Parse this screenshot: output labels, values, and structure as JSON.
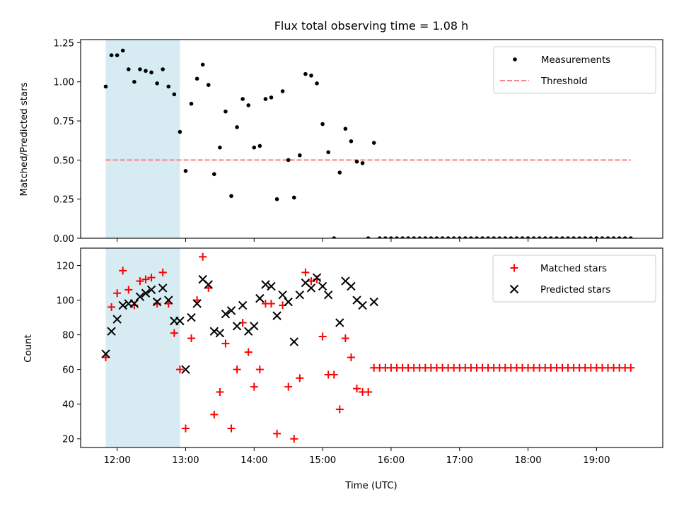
{
  "chart_data": [
    {
      "type": "scatter",
      "title": "Flux total observing time = 1.08 h",
      "xlabel": "",
      "ylabel": "Matched/Predicted stars",
      "ylim": [
        0,
        1.27
      ],
      "yticks": [
        0.0,
        0.25,
        0.5,
        0.75,
        1.0,
        1.25
      ],
      "ytick_labels": [
        "0.00",
        "0.25",
        "0.50",
        "0.75",
        "1.00",
        "1.25"
      ],
      "xlim": [
        "11:28",
        "19:58"
      ],
      "xticks": [
        "12:00",
        "13:00",
        "14:00",
        "15:00",
        "16:00",
        "17:00",
        "18:00",
        "19:00"
      ],
      "shaded_interval": [
        "11:50",
        "12:55"
      ],
      "shaded_color": "#add8e6",
      "legend_position": "upper right",
      "legend": [
        "Measurements",
        "Threshold"
      ],
      "threshold": {
        "name": "Threshold",
        "y": 0.5,
        "x_range": [
          "11:50",
          "19:30"
        ],
        "color": "#ff7f7f",
        "style": "dashed"
      },
      "series": [
        {
          "name": "Measurements",
          "marker": "dot",
          "color": "#000000",
          "points": [
            [
              "11:50",
              0.97
            ],
            [
              "11:55",
              1.17
            ],
            [
              "12:00",
              1.17
            ],
            [
              "12:05",
              1.2
            ],
            [
              "12:10",
              1.08
            ],
            [
              "12:15",
              1.0
            ],
            [
              "12:20",
              1.08
            ],
            [
              "12:25",
              1.07
            ],
            [
              "12:30",
              1.06
            ],
            [
              "12:35",
              0.99
            ],
            [
              "12:40",
              1.08
            ],
            [
              "12:45",
              0.97
            ],
            [
              "12:50",
              0.92
            ],
            [
              "12:55",
              0.68
            ],
            [
              "13:00",
              0.43
            ],
            [
              "13:05",
              0.86
            ],
            [
              "13:10",
              1.02
            ],
            [
              "13:15",
              1.11
            ],
            [
              "13:20",
              0.98
            ],
            [
              "13:25",
              0.41
            ],
            [
              "13:30",
              0.58
            ],
            [
              "13:35",
              0.81
            ],
            [
              "13:40",
              0.27
            ],
            [
              "13:45",
              0.71
            ],
            [
              "13:50",
              0.89
            ],
            [
              "13:55",
              0.85
            ],
            [
              "14:00",
              0.58
            ],
            [
              "14:05",
              0.59
            ],
            [
              "14:10",
              0.89
            ],
            [
              "14:15",
              0.9
            ],
            [
              "14:20",
              0.25
            ],
            [
              "14:25",
              0.94
            ],
            [
              "14:30",
              0.5
            ],
            [
              "14:35",
              0.26
            ],
            [
              "14:40",
              0.53
            ],
            [
              "14:45",
              1.05
            ],
            [
              "14:50",
              1.04
            ],
            [
              "14:55",
              0.99
            ],
            [
              "15:00",
              0.73
            ],
            [
              "15:05",
              0.55
            ],
            [
              "15:10",
              0.0
            ],
            [
              "15:15",
              0.42
            ],
            [
              "15:20",
              0.7
            ],
            [
              "15:25",
              0.62
            ],
            [
              "15:30",
              0.49
            ],
            [
              "15:35",
              0.48
            ],
            [
              "15:40",
              0.0
            ],
            [
              "15:45",
              0.61
            ],
            [
              "15:50",
              0.0
            ],
            [
              "15:55",
              0.0
            ],
            [
              "16:00",
              0.0
            ],
            [
              "16:05",
              0.0
            ],
            [
              "16:10",
              0.0
            ],
            [
              "16:15",
              0.0
            ],
            [
              "16:20",
              0.0
            ],
            [
              "16:25",
              0.0
            ],
            [
              "16:30",
              0.0
            ],
            [
              "16:35",
              0.0
            ],
            [
              "16:40",
              0.0
            ],
            [
              "16:45",
              0.0
            ],
            [
              "16:50",
              0.0
            ],
            [
              "16:55",
              0.0
            ],
            [
              "17:00",
              0.0
            ],
            [
              "17:05",
              0.0
            ],
            [
              "17:10",
              0.0
            ],
            [
              "17:15",
              0.0
            ],
            [
              "17:20",
              0.0
            ],
            [
              "17:25",
              0.0
            ],
            [
              "17:30",
              0.0
            ],
            [
              "17:35",
              0.0
            ],
            [
              "17:40",
              0.0
            ],
            [
              "17:45",
              0.0
            ],
            [
              "17:50",
              0.0
            ],
            [
              "17:55",
              0.0
            ],
            [
              "18:00",
              0.0
            ],
            [
              "18:05",
              0.0
            ],
            [
              "18:10",
              0.0
            ],
            [
              "18:15",
              0.0
            ],
            [
              "18:20",
              0.0
            ],
            [
              "18:25",
              0.0
            ],
            [
              "18:30",
              0.0
            ],
            [
              "18:35",
              0.0
            ],
            [
              "18:40",
              0.0
            ],
            [
              "18:45",
              0.0
            ],
            [
              "18:50",
              0.0
            ],
            [
              "18:55",
              0.0
            ],
            [
              "19:00",
              0.0
            ],
            [
              "19:05",
              0.0
            ],
            [
              "19:10",
              0.0
            ],
            [
              "19:15",
              0.0
            ],
            [
              "19:20",
              0.0
            ],
            [
              "19:25",
              0.0
            ],
            [
              "19:30",
              0.0
            ]
          ]
        }
      ]
    },
    {
      "type": "scatter",
      "title": "",
      "xlabel": "Time (UTC)",
      "ylabel": "Count",
      "ylim": [
        15,
        130
      ],
      "yticks": [
        20,
        40,
        60,
        80,
        100,
        120
      ],
      "xlim": [
        "11:28",
        "19:58"
      ],
      "xticks": [
        "12:00",
        "13:00",
        "14:00",
        "15:00",
        "16:00",
        "17:00",
        "18:00",
        "19:00"
      ],
      "shaded_interval": [
        "11:50",
        "12:55"
      ],
      "shaded_color": "#add8e6",
      "legend_position": "upper right",
      "legend": [
        "Matched stars",
        "Predicted stars"
      ],
      "series": [
        {
          "name": "Matched stars",
          "marker": "plus",
          "color": "#ff0000",
          "points": [
            [
              "11:50",
              67
            ],
            [
              "11:55",
              96
            ],
            [
              "12:00",
              104
            ],
            [
              "12:05",
              117
            ],
            [
              "12:10",
              106
            ],
            [
              "12:15",
              97
            ],
            [
              "12:20",
              111
            ],
            [
              "12:25",
              112
            ],
            [
              "12:30",
              113
            ],
            [
              "12:35",
              98
            ],
            [
              "12:40",
              116
            ],
            [
              "12:45",
              98
            ],
            [
              "12:50",
              81
            ],
            [
              "12:55",
              60
            ],
            [
              "13:00",
              26
            ],
            [
              "13:05",
              78
            ],
            [
              "13:10",
              100
            ],
            [
              "13:15",
              125
            ],
            [
              "13:20",
              107
            ],
            [
              "13:25",
              34
            ],
            [
              "13:30",
              47
            ],
            [
              "13:35",
              75
            ],
            [
              "13:40",
              26
            ],
            [
              "13:45",
              60
            ],
            [
              "13:50",
              87
            ],
            [
              "13:55",
              70
            ],
            [
              "14:00",
              50
            ],
            [
              "14:05",
              60
            ],
            [
              "14:10",
              98
            ],
            [
              "14:15",
              98
            ],
            [
              "14:20",
              23
            ],
            [
              "14:25",
              97
            ],
            [
              "14:30",
              50
            ],
            [
              "14:35",
              20
            ],
            [
              "14:40",
              55
            ],
            [
              "14:45",
              116
            ],
            [
              "14:50",
              111
            ],
            [
              "14:55",
              112
            ],
            [
              "15:00",
              79
            ],
            [
              "15:05",
              57
            ],
            [
              "15:10",
              57
            ],
            [
              "15:15",
              37
            ],
            [
              "15:20",
              78
            ],
            [
              "15:25",
              67
            ],
            [
              "15:30",
              49
            ],
            [
              "15:35",
              47
            ],
            [
              "15:40",
              47
            ],
            [
              "15:45",
              61
            ],
            [
              "15:50",
              61
            ],
            [
              "15:55",
              61
            ],
            [
              "16:00",
              61
            ],
            [
              "16:05",
              61
            ],
            [
              "16:10",
              61
            ],
            [
              "16:15",
              61
            ],
            [
              "16:20",
              61
            ],
            [
              "16:25",
              61
            ],
            [
              "16:30",
              61
            ],
            [
              "16:35",
              61
            ],
            [
              "16:40",
              61
            ],
            [
              "16:45",
              61
            ],
            [
              "16:50",
              61
            ],
            [
              "16:55",
              61
            ],
            [
              "17:00",
              61
            ],
            [
              "17:05",
              61
            ],
            [
              "17:10",
              61
            ],
            [
              "17:15",
              61
            ],
            [
              "17:20",
              61
            ],
            [
              "17:25",
              61
            ],
            [
              "17:30",
              61
            ],
            [
              "17:35",
              61
            ],
            [
              "17:40",
              61
            ],
            [
              "17:45",
              61
            ],
            [
              "17:50",
              61
            ],
            [
              "17:55",
              61
            ],
            [
              "18:00",
              61
            ],
            [
              "18:05",
              61
            ],
            [
              "18:10",
              61
            ],
            [
              "18:15",
              61
            ],
            [
              "18:20",
              61
            ],
            [
              "18:25",
              61
            ],
            [
              "18:30",
              61
            ],
            [
              "18:35",
              61
            ],
            [
              "18:40",
              61
            ],
            [
              "18:45",
              61
            ],
            [
              "18:50",
              61
            ],
            [
              "18:55",
              61
            ],
            [
              "19:00",
              61
            ],
            [
              "19:05",
              61
            ],
            [
              "19:10",
              61
            ],
            [
              "19:15",
              61
            ],
            [
              "19:20",
              61
            ],
            [
              "19:25",
              61
            ],
            [
              "19:30",
              61
            ]
          ]
        },
        {
          "name": "Predicted stars",
          "marker": "x",
          "color": "#000000",
          "points": [
            [
              "11:50",
              69
            ],
            [
              "11:55",
              82
            ],
            [
              "12:00",
              89
            ],
            [
              "12:05",
              97
            ],
            [
              "12:10",
              98
            ],
            [
              "12:15",
              98
            ],
            [
              "12:20",
              102
            ],
            [
              "12:25",
              104
            ],
            [
              "12:30",
              106
            ],
            [
              "12:35",
              99
            ],
            [
              "12:40",
              107
            ],
            [
              "12:45",
              100
            ],
            [
              "12:50",
              88
            ],
            [
              "12:55",
              88
            ],
            [
              "13:00",
              60
            ],
            [
              "13:05",
              90
            ],
            [
              "13:10",
              98
            ],
            [
              "13:15",
              112
            ],
            [
              "13:20",
              109
            ],
            [
              "13:25",
              82
            ],
            [
              "13:30",
              81
            ],
            [
              "13:35",
              92
            ],
            [
              "13:40",
              94
            ],
            [
              "13:45",
              85
            ],
            [
              "13:50",
              97
            ],
            [
              "13:55",
              82
            ],
            [
              "14:00",
              85
            ],
            [
              "14:05",
              101
            ],
            [
              "14:10",
              109
            ],
            [
              "14:15",
              108
            ],
            [
              "14:20",
              91
            ],
            [
              "14:25",
              103
            ],
            [
              "14:30",
              99
            ],
            [
              "14:35",
              76
            ],
            [
              "14:40",
              103
            ],
            [
              "14:45",
              110
            ],
            [
              "14:50",
              107
            ],
            [
              "14:55",
              113
            ],
            [
              "15:00",
              108
            ],
            [
              "15:05",
              103
            ],
            [
              "15:15",
              87
            ],
            [
              "15:20",
              111
            ],
            [
              "15:25",
              108
            ],
            [
              "15:30",
              100
            ],
            [
              "15:35",
              97
            ],
            [
              "15:45",
              99
            ]
          ]
        }
      ]
    }
  ]
}
